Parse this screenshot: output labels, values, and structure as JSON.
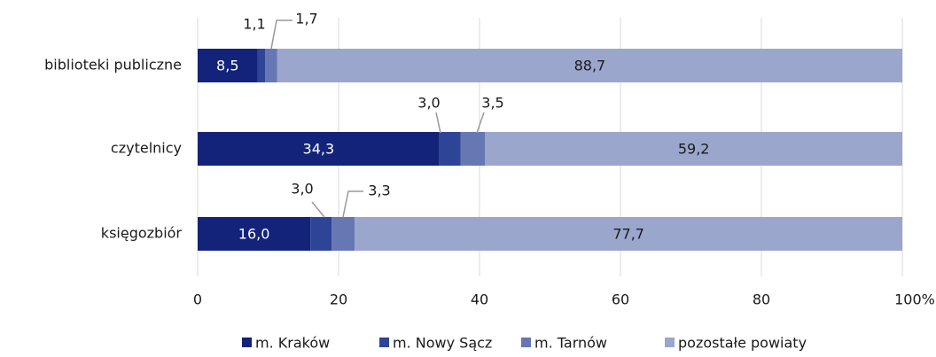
{
  "chart_data": {
    "type": "stacked-barh",
    "categories": [
      "biblioteki publiczne",
      "czytelnicy",
      "księgozbiór"
    ],
    "series": [
      {
        "name": "m. Kraków",
        "color": "#13237a",
        "values": [
          8.5,
          34.3,
          16.0
        ],
        "value_labels": [
          "8,5",
          "34,3",
          "16,0"
        ]
      },
      {
        "name": "m. Nowy Sącz",
        "color": "#2e4496",
        "values": [
          1.1,
          3.0,
          3.0
        ],
        "value_labels": [
          "1,1",
          "3,0",
          "3,0"
        ]
      },
      {
        "name": "m. Tarnów",
        "color": "#6678b3",
        "values": [
          1.7,
          3.5,
          3.3
        ],
        "value_labels": [
          "1,7",
          "3,5",
          "3,3"
        ]
      },
      {
        "name": "pozostałe powiaty",
        "color": "#9ba6cc",
        "values": [
          88.7,
          59.2,
          77.7
        ],
        "value_labels": [
          "88,7",
          "59,2",
          "77,7"
        ]
      }
    ],
    "xlim": [
      0,
      100
    ],
    "xticks": [
      0,
      20,
      40,
      60,
      80,
      {
        "value": 100,
        "label": "100%"
      }
    ],
    "grid": true,
    "legend": "bottom"
  }
}
